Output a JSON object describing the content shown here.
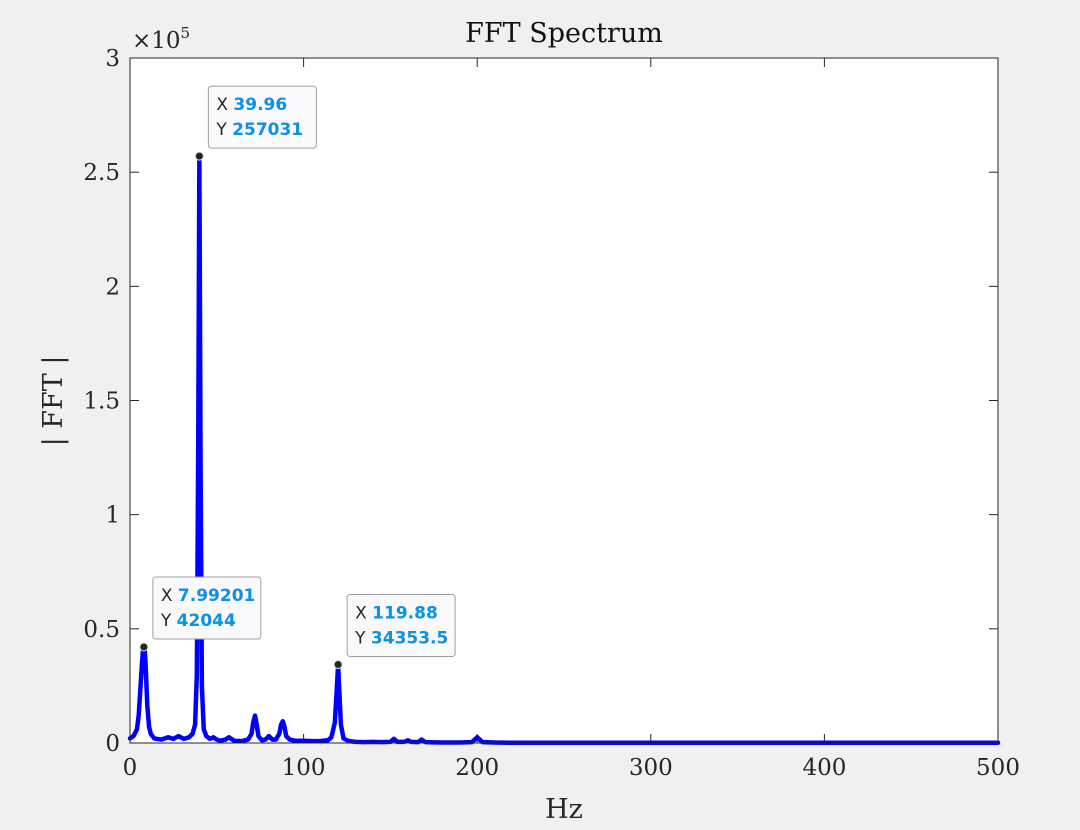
{
  "chart_data": {
    "type": "line",
    "title": "FFT Spectrum",
    "xlabel": "Hz",
    "ylabel": "| FFT |",
    "xlim": [
      0,
      500
    ],
    "ylim": [
      0,
      300000
    ],
    "x_ticks": [
      0,
      100,
      200,
      300,
      400,
      500
    ],
    "y_ticks": [
      0,
      50000,
      100000,
      150000,
      200000,
      250000,
      300000
    ],
    "y_tick_labels": [
      "0",
      "0.5",
      "1",
      "1.5",
      "2",
      "2.5",
      "3"
    ],
    "y_exponent_label": "×10",
    "y_exponent_power": "5",
    "grid": false,
    "line_color": "#0000ff",
    "series": [
      {
        "x": [
          0,
          2,
          4,
          5,
          6,
          7,
          7.5,
          8,
          8.5,
          9,
          10,
          11,
          12,
          14,
          18,
          22,
          25,
          28,
          31,
          34,
          36,
          37.5,
          38.5,
          39.3,
          39.96,
          40.6,
          41.4,
          42.5,
          44,
          46,
          48,
          50,
          52,
          55,
          57,
          60,
          64,
          68,
          70,
          71,
          72,
          73,
          74,
          76,
          78,
          80,
          82,
          84,
          86,
          87,
          88,
          89,
          90,
          92,
          95,
          100,
          105,
          110,
          114,
          116,
          118,
          119,
          119.88,
          120.6,
          121.5,
          123,
          126,
          130,
          135,
          140,
          145,
          150,
          152,
          154,
          158,
          160,
          162,
          166,
          168,
          170,
          175,
          180,
          190,
          197,
          200,
          203,
          210,
          220,
          250,
          300,
          350,
          400,
          450,
          500
        ],
        "y": [
          2000,
          3000,
          6000,
          12000,
          24000,
          36000,
          41000,
          42044,
          41000,
          34000,
          16000,
          7000,
          4000,
          2000,
          1500,
          2500,
          1800,
          3000,
          1800,
          2500,
          4000,
          8000,
          30000,
          130000,
          257031,
          130000,
          25000,
          6000,
          3000,
          1800,
          2500,
          1500,
          1000,
          1500,
          2500,
          1000,
          800,
          1500,
          4000,
          9000,
          12000,
          8000,
          3000,
          1200,
          1500,
          3000,
          1500,
          1500,
          4000,
          8000,
          9500,
          7000,
          3000,
          1500,
          1000,
          1000,
          800,
          900,
          1200,
          2500,
          9000,
          22000,
          34353.5,
          22000,
          8000,
          2000,
          800,
          500,
          400,
          500,
          400,
          500,
          1800,
          500,
          500,
          1200,
          500,
          400,
          1500,
          400,
          300,
          200,
          200,
          400,
          2500,
          400,
          200,
          100,
          100,
          100,
          100,
          100,
          100,
          100
        ]
      }
    ],
    "datatips": [
      {
        "x_label": "X",
        "y_label": "Y",
        "x": 39.96,
        "y": 257031,
        "x_text": "39.96",
        "y_text": "257031"
      },
      {
        "x_label": "X",
        "y_label": "Y",
        "x": 7.99201,
        "y": 42044,
        "x_text": "7.99201",
        "y_text": "42044"
      },
      {
        "x_label": "X",
        "y_label": "Y",
        "x": 119.88,
        "y": 34353.5,
        "x_text": "119.88",
        "y_text": "34353.5"
      }
    ]
  }
}
